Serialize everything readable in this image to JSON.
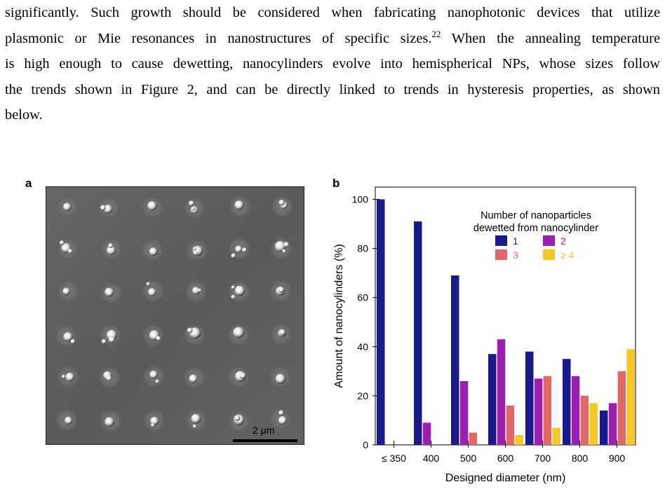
{
  "paragraph": {
    "line1": "significantly. Such growth should be considered when fabricating nanophotonic devices that utilize",
    "line2_a": "plasmonic or Mie resonances in nanostructures of specific sizes.",
    "line2_ref": "22",
    "line2_b": " When the annealing temperature",
    "line3": "is high enough to cause dewetting, nanocylinders evolve into hemispherical NPs, whose sizes follow",
    "line4": "the trends shown in Figure 2, and can be directly linked to trends in hysteresis properties, as shown",
    "line5": "below."
  },
  "figure": {
    "panel_a_label": "a",
    "panel_b_label": "b",
    "scale_bar_label": "2 μm"
  },
  "chart_data": {
    "type": "bar",
    "categories": [
      "≤ 350",
      "400",
      "500",
      "600",
      "700",
      "800",
      "900"
    ],
    "series": [
      {
        "name": "1",
        "color": "#1a1a8c",
        "values": [
          100,
          91,
          69,
          37,
          38,
          35,
          14
        ]
      },
      {
        "name": "2",
        "color": "#9b1fb0",
        "values": [
          0,
          9,
          26,
          43,
          27,
          28,
          17
        ]
      },
      {
        "name": "3",
        "color": "#e26868",
        "values": [
          0,
          0,
          5,
          16,
          28,
          20,
          30
        ]
      },
      {
        "name": "≥ 4",
        "color": "#f7c825",
        "values": [
          0,
          0,
          0,
          4,
          7,
          17,
          39
        ]
      }
    ],
    "xlabel": "Designed diameter (nm)",
    "ylabel": "Amount of nanocylinders (%)",
    "ylim": [
      0,
      105
    ],
    "yticks": [
      0,
      20,
      40,
      60,
      80,
      100
    ],
    "legend_title_line1": "Number of nanoparticles",
    "legend_title_line2": "dewetted from nanocylinder",
    "legend_position": "top-right",
    "grid": false
  }
}
